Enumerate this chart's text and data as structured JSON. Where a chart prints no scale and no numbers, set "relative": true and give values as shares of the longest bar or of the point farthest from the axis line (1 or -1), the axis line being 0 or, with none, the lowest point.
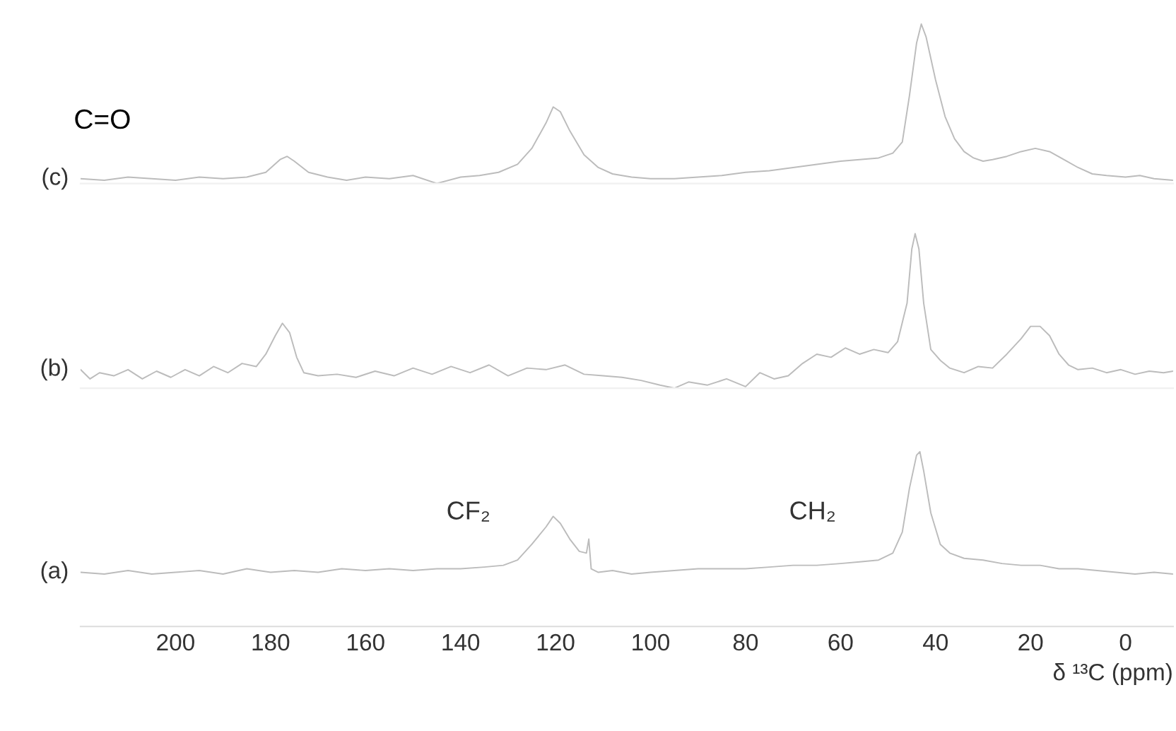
{
  "chart_data": [
    {
      "type": "line",
      "relative": true,
      "xlim": [
        220,
        -10
      ],
      "xticks": [
        200,
        180,
        160,
        140,
        120,
        100,
        80,
        60,
        40,
        20,
        0
      ],
      "tick_labels": false,
      "annotations": [
        "C=O"
      ],
      "series": [
        {
          "name": "(c)",
          "color": "#bcbcbc",
          "x": [
            220,
            215,
            210,
            205,
            200,
            195,
            190,
            185,
            181,
            178,
            176.5,
            175,
            172,
            168,
            164,
            160,
            155,
            150,
            145,
            140,
            136,
            132,
            128,
            125,
            122,
            120.5,
            119,
            117,
            114,
            111,
            108,
            104,
            100,
            95,
            90,
            85,
            80,
            75,
            70,
            65,
            60,
            56,
            52,
            49,
            47,
            45.5,
            44,
            43,
            42,
            40,
            38,
            36,
            34,
            32,
            30,
            28,
            25,
            22,
            19,
            16,
            13,
            10,
            7,
            4,
            0,
            -3,
            -6,
            -10
          ],
          "values": [
            0.03,
            0.02,
            0.04,
            0.03,
            0.02,
            0.04,
            0.03,
            0.04,
            0.07,
            0.15,
            0.17,
            0.14,
            0.07,
            0.04,
            0.02,
            0.04,
            0.03,
            0.05,
            0.0,
            0.04,
            0.05,
            0.07,
            0.12,
            0.22,
            0.38,
            0.48,
            0.45,
            0.33,
            0.18,
            0.1,
            0.06,
            0.04,
            0.03,
            0.03,
            0.04,
            0.05,
            0.07,
            0.08,
            0.1,
            0.12,
            0.14,
            0.15,
            0.16,
            0.19,
            0.26,
            0.55,
            0.88,
            1.0,
            0.92,
            0.65,
            0.42,
            0.28,
            0.2,
            0.16,
            0.14,
            0.15,
            0.17,
            0.2,
            0.22,
            0.2,
            0.15,
            0.1,
            0.06,
            0.05,
            0.04,
            0.05,
            0.03,
            0.02
          ]
        }
      ]
    },
    {
      "type": "line",
      "relative": true,
      "xlim": [
        220,
        -10
      ],
      "xticks": [
        200,
        180,
        160,
        140,
        120,
        100,
        80,
        60,
        40,
        20,
        0
      ],
      "tick_labels": false,
      "series": [
        {
          "name": "(b)",
          "color": "#bcbcbc",
          "x": [
            220,
            218,
            216,
            213,
            210,
            207,
            204,
            201,
            198,
            195,
            192,
            189,
            186,
            183,
            181,
            179,
            177.5,
            176,
            174.5,
            173,
            170,
            166,
            162,
            158,
            154,
            150,
            146,
            142,
            138,
            134,
            130,
            126,
            122,
            118,
            114,
            110,
            106,
            102,
            98,
            95,
            92,
            88,
            84,
            80,
            77,
            74,
            71,
            68,
            65,
            62,
            59,
            56,
            53,
            50,
            48,
            46,
            45,
            44.3,
            43.5,
            42.5,
            41,
            39,
            37,
            34,
            31,
            28,
            25,
            22,
            20,
            18,
            16,
            14,
            12,
            10,
            7,
            4,
            1,
            -2,
            -5,
            -8,
            -10
          ],
          "values": [
            0.12,
            0.06,
            0.1,
            0.08,
            0.12,
            0.06,
            0.11,
            0.07,
            0.12,
            0.08,
            0.14,
            0.1,
            0.16,
            0.14,
            0.22,
            0.34,
            0.42,
            0.36,
            0.2,
            0.1,
            0.08,
            0.09,
            0.07,
            0.11,
            0.08,
            0.13,
            0.09,
            0.14,
            0.1,
            0.15,
            0.08,
            0.13,
            0.12,
            0.15,
            0.09,
            0.08,
            0.07,
            0.05,
            0.02,
            0.0,
            0.04,
            0.02,
            0.06,
            0.01,
            0.1,
            0.06,
            0.08,
            0.16,
            0.22,
            0.2,
            0.26,
            0.22,
            0.25,
            0.23,
            0.3,
            0.55,
            0.9,
            1.0,
            0.9,
            0.55,
            0.25,
            0.18,
            0.13,
            0.1,
            0.14,
            0.13,
            0.22,
            0.32,
            0.4,
            0.4,
            0.34,
            0.22,
            0.15,
            0.12,
            0.13,
            0.1,
            0.12,
            0.09,
            0.11,
            0.1,
            0.11
          ]
        }
      ]
    },
    {
      "type": "line",
      "relative": true,
      "xlim": [
        220,
        -10
      ],
      "tick_labels": "x",
      "xticks": [
        200,
        180,
        160,
        140,
        120,
        100,
        80,
        60,
        40,
        20,
        0
      ],
      "xlabel": "δ ¹³C (ppm)",
      "annotations": [
        "CF₂",
        "CH₂"
      ],
      "series": [
        {
          "name": "(a)",
          "color": "#bcbcbc",
          "x": [
            220,
            215,
            210,
            205,
            200,
            195,
            190,
            185,
            180,
            175,
            170,
            165,
            160,
            155,
            150,
            145,
            140,
            135,
            131,
            128,
            125,
            122,
            120.5,
            119,
            117,
            115,
            113.5,
            113,
            112.5,
            111,
            108,
            104,
            100,
            95,
            90,
            85,
            80,
            75,
            70,
            65,
            60,
            56,
            52,
            49,
            47,
            45.5,
            44,
            43.3,
            42.5,
            41,
            39,
            37,
            34,
            30,
            26,
            22,
            18,
            14,
            10,
            6,
            2,
            -2,
            -6,
            -10
          ],
          "values": [
            0.31,
            0.3,
            0.32,
            0.3,
            0.31,
            0.32,
            0.3,
            0.33,
            0.31,
            0.32,
            0.31,
            0.33,
            0.32,
            0.33,
            0.32,
            0.33,
            0.33,
            0.34,
            0.35,
            0.38,
            0.47,
            0.57,
            0.63,
            0.59,
            0.5,
            0.43,
            0.42,
            0.5,
            0.33,
            0.31,
            0.32,
            0.3,
            0.31,
            0.32,
            0.33,
            0.33,
            0.33,
            0.34,
            0.35,
            0.35,
            0.36,
            0.37,
            0.38,
            0.42,
            0.54,
            0.79,
            0.98,
            1.0,
            0.89,
            0.65,
            0.47,
            0.42,
            0.39,
            0.38,
            0.36,
            0.35,
            0.35,
            0.33,
            0.33,
            0.32,
            0.31,
            0.3,
            0.31,
            0.3
          ]
        }
      ]
    }
  ]
}
